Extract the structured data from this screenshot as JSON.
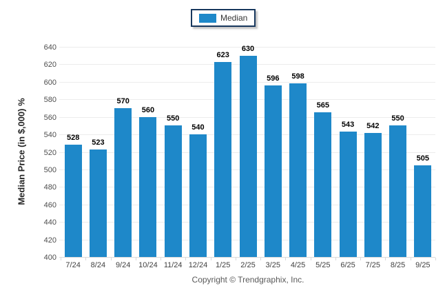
{
  "legend": {
    "border_color": "#17375d",
    "items": [
      {
        "label": "Median",
        "color": "#1e88c9"
      }
    ]
  },
  "footer": {
    "copyright": "Copyright © Trendgraphix, Inc."
  },
  "chart_data": {
    "type": "bar",
    "title": "",
    "series_name": "Median",
    "categories": [
      "7/24",
      "8/24",
      "9/24",
      "10/24",
      "11/24",
      "12/24",
      "1/25",
      "2/25",
      "3/25",
      "4/25",
      "5/25",
      "6/25",
      "7/25",
      "8/25",
      "9/25"
    ],
    "values": [
      528,
      523,
      570,
      560,
      550,
      540,
      623,
      630,
      596,
      598,
      565,
      543,
      542,
      550,
      505
    ],
    "xlabel": "",
    "ylabel": "Median Price (in $,000) %",
    "ylim": [
      400,
      640
    ],
    "yticks": [
      400,
      420,
      440,
      460,
      480,
      500,
      520,
      540,
      560,
      580,
      600,
      620,
      640
    ],
    "grid": true,
    "legend_position": "top-center",
    "bar_color": "#1e88c9",
    "colors": {
      "gridline": "#ececec",
      "axis_line": "#d9d9d9",
      "tick_label": "#4d4d4d",
      "x_label": "#3f3f3f",
      "value_label": "#000000",
      "axis_title": "#262626",
      "footer_text": "#595959"
    }
  }
}
